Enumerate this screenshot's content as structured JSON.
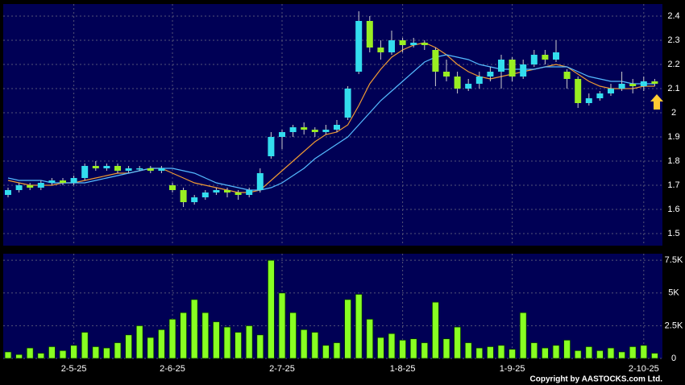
{
  "chart_data": {
    "type": "candlestick",
    "categories": [
      null,
      null,
      null,
      null,
      null,
      null,
      "2-5-25",
      null,
      null,
      null,
      null,
      null,
      null,
      null,
      null,
      "2-6-25",
      null,
      null,
      null,
      null,
      null,
      null,
      null,
      null,
      null,
      "2-7-25",
      null,
      null,
      null,
      null,
      null,
      null,
      null,
      null,
      null,
      null,
      "1-8-25",
      null,
      null,
      null,
      null,
      null,
      null,
      null,
      null,
      null,
      "1-9-25",
      null,
      null,
      null,
      null,
      null,
      null,
      null,
      null,
      null,
      null,
      null,
      "2-10-25",
      null
    ],
    "candles": [
      [
        1.66,
        1.69,
        1.65,
        1.68
      ],
      [
        1.68,
        1.71,
        1.67,
        1.7
      ],
      [
        1.7,
        1.71,
        1.68,
        1.69
      ],
      [
        1.69,
        1.72,
        1.68,
        1.71
      ],
      [
        1.71,
        1.73,
        1.7,
        1.72
      ],
      [
        1.72,
        1.73,
        1.7,
        1.71
      ],
      [
        1.71,
        1.74,
        1.7,
        1.73
      ],
      [
        1.73,
        1.79,
        1.72,
        1.78
      ],
      [
        1.78,
        1.8,
        1.76,
        1.77
      ],
      [
        1.77,
        1.79,
        1.76,
        1.78
      ],
      [
        1.78,
        1.79,
        1.75,
        1.76
      ],
      [
        1.76,
        1.78,
        1.75,
        1.77
      ],
      [
        1.77,
        1.78,
        1.76,
        1.77
      ],
      [
        1.77,
        1.78,
        1.75,
        1.76
      ],
      [
        1.76,
        1.78,
        1.75,
        1.77
      ],
      [
        1.7,
        1.71,
        1.67,
        1.68
      ],
      [
        1.68,
        1.69,
        1.61,
        1.63
      ],
      [
        1.63,
        1.66,
        1.62,
        1.65
      ],
      [
        1.65,
        1.68,
        1.64,
        1.67
      ],
      [
        1.67,
        1.69,
        1.66,
        1.68
      ],
      [
        1.68,
        1.69,
        1.65,
        1.67
      ],
      [
        1.67,
        1.68,
        1.64,
        1.66
      ],
      [
        1.66,
        1.69,
        1.65,
        1.68
      ],
      [
        1.68,
        1.77,
        1.67,
        1.75
      ],
      [
        1.82,
        1.92,
        1.81,
        1.9
      ],
      [
        1.9,
        1.93,
        1.85,
        1.92
      ],
      [
        1.92,
        1.95,
        1.9,
        1.94
      ],
      [
        1.94,
        1.96,
        1.91,
        1.93
      ],
      [
        1.93,
        1.94,
        1.9,
        1.92
      ],
      [
        1.92,
        1.95,
        1.91,
        1.93
      ],
      [
        1.93,
        1.97,
        1.92,
        1.95
      ],
      [
        1.98,
        2.11,
        1.97,
        2.1
      ],
      [
        2.17,
        2.42,
        2.16,
        2.38
      ],
      [
        2.38,
        2.4,
        2.25,
        2.27
      ],
      [
        2.27,
        2.3,
        2.22,
        2.25
      ],
      [
        2.25,
        2.34,
        2.24,
        2.3
      ],
      [
        2.3,
        2.31,
        2.25,
        2.28
      ],
      [
        2.28,
        2.31,
        2.27,
        2.29
      ],
      [
        2.29,
        2.3,
        2.26,
        2.28
      ],
      [
        2.26,
        2.27,
        2.11,
        2.17
      ],
      [
        2.17,
        2.22,
        2.13,
        2.15
      ],
      [
        2.15,
        2.17,
        2.08,
        2.1
      ],
      [
        2.1,
        2.14,
        2.09,
        2.12
      ],
      [
        2.12,
        2.17,
        2.1,
        2.15
      ],
      [
        2.15,
        2.19,
        2.13,
        2.17
      ],
      [
        2.17,
        2.24,
        2.1,
        2.22
      ],
      [
        2.22,
        2.23,
        2.13,
        2.15
      ],
      [
        2.15,
        2.22,
        2.14,
        2.2
      ],
      [
        2.2,
        2.26,
        2.19,
        2.24
      ],
      [
        2.24,
        2.26,
        2.2,
        2.22
      ],
      [
        2.22,
        2.3,
        2.21,
        2.25
      ],
      [
        2.17,
        2.18,
        2.1,
        2.14
      ],
      [
        2.14,
        2.15,
        2.02,
        2.04
      ],
      [
        2.04,
        2.08,
        2.03,
        2.06
      ],
      [
        2.06,
        2.09,
        2.05,
        2.08
      ],
      [
        2.08,
        2.12,
        2.07,
        2.1
      ],
      [
        2.1,
        2.17,
        2.09,
        2.12
      ],
      [
        2.12,
        2.14,
        2.08,
        2.11
      ],
      [
        2.11,
        2.15,
        2.09,
        2.13
      ],
      [
        2.13,
        2.14,
        2.11,
        2.12
      ]
    ],
    "up_color": "#33ddee",
    "down_color": "#99ee22",
    "series": [
      {
        "color": "#ee9933",
        "values": [
          1.72,
          1.71,
          1.7,
          1.7,
          1.7,
          1.71,
          1.71,
          1.72,
          1.73,
          1.74,
          1.75,
          1.75,
          1.76,
          1.77,
          1.77,
          1.75,
          1.73,
          1.71,
          1.7,
          1.69,
          1.68,
          1.67,
          1.67,
          1.68,
          1.72,
          1.76,
          1.8,
          1.84,
          1.88,
          1.91,
          1.92,
          1.95,
          2.03,
          2.12,
          2.18,
          2.23,
          2.26,
          2.28,
          2.29,
          2.27,
          2.24,
          2.2,
          2.17,
          2.15,
          2.14,
          2.15,
          2.16,
          2.17,
          2.18,
          2.19,
          2.2,
          2.19,
          2.16,
          2.13,
          2.11,
          2.1,
          2.1,
          2.1,
          2.11,
          2.11
        ]
      },
      {
        "color": "#55bbff",
        "values": [
          1.73,
          1.72,
          1.72,
          1.72,
          1.71,
          1.71,
          1.71,
          1.71,
          1.72,
          1.73,
          1.74,
          1.75,
          1.76,
          1.77,
          1.77,
          1.77,
          1.76,
          1.75,
          1.73,
          1.71,
          1.7,
          1.69,
          1.68,
          1.68,
          1.69,
          1.71,
          1.74,
          1.77,
          1.81,
          1.84,
          1.87,
          1.9,
          1.95,
          2.0,
          2.05,
          2.09,
          2.13,
          2.17,
          2.21,
          2.23,
          2.24,
          2.23,
          2.22,
          2.2,
          2.19,
          2.18,
          2.18,
          2.18,
          2.18,
          2.19,
          2.19,
          2.19,
          2.17,
          2.15,
          2.14,
          2.13,
          2.13,
          2.12,
          2.12,
          2.12
        ]
      }
    ],
    "ylim": [
      1.45,
      2.45
    ],
    "yticks": [
      1.5,
      1.6,
      1.7,
      1.8,
      1.9,
      2,
      2.1,
      2.2,
      2.3,
      2.4
    ],
    "grid": true,
    "volume": {
      "color": "#88ff22",
      "values": [
        0.5,
        0.3,
        0.8,
        0.4,
        0.9,
        0.6,
        1.0,
        2.0,
        0.9,
        0.8,
        1.2,
        1.8,
        2.5,
        1.6,
        2.2,
        3.0,
        3.5,
        4.5,
        3.5,
        2.8,
        2.4,
        2.0,
        2.5,
        1.8,
        7.5,
        5.0,
        3.5,
        2.2,
        2.0,
        1.0,
        1.2,
        4.5,
        4.9,
        3.0,
        1.6,
        1.9,
        1.4,
        1.5,
        1.2,
        4.3,
        1.5,
        2.4,
        1.2,
        0.8,
        0.9,
        1.0,
        0.7,
        3.5,
        1.2,
        0.8,
        1.0,
        1.4,
        0.6,
        0.9,
        0.6,
        0.8,
        0.5,
        0.9,
        1.0,
        0.4
      ],
      "ylim": [
        0,
        8
      ],
      "yticks": [
        0,
        {
          "value": 2.5,
          "label": "2.5K"
        },
        {
          "value": 5,
          "label": "5K"
        },
        {
          "value": 7.5,
          "label": "7.5K"
        }
      ]
    },
    "copyright": "Copyright by AASTOCKS.com Ltd."
  }
}
